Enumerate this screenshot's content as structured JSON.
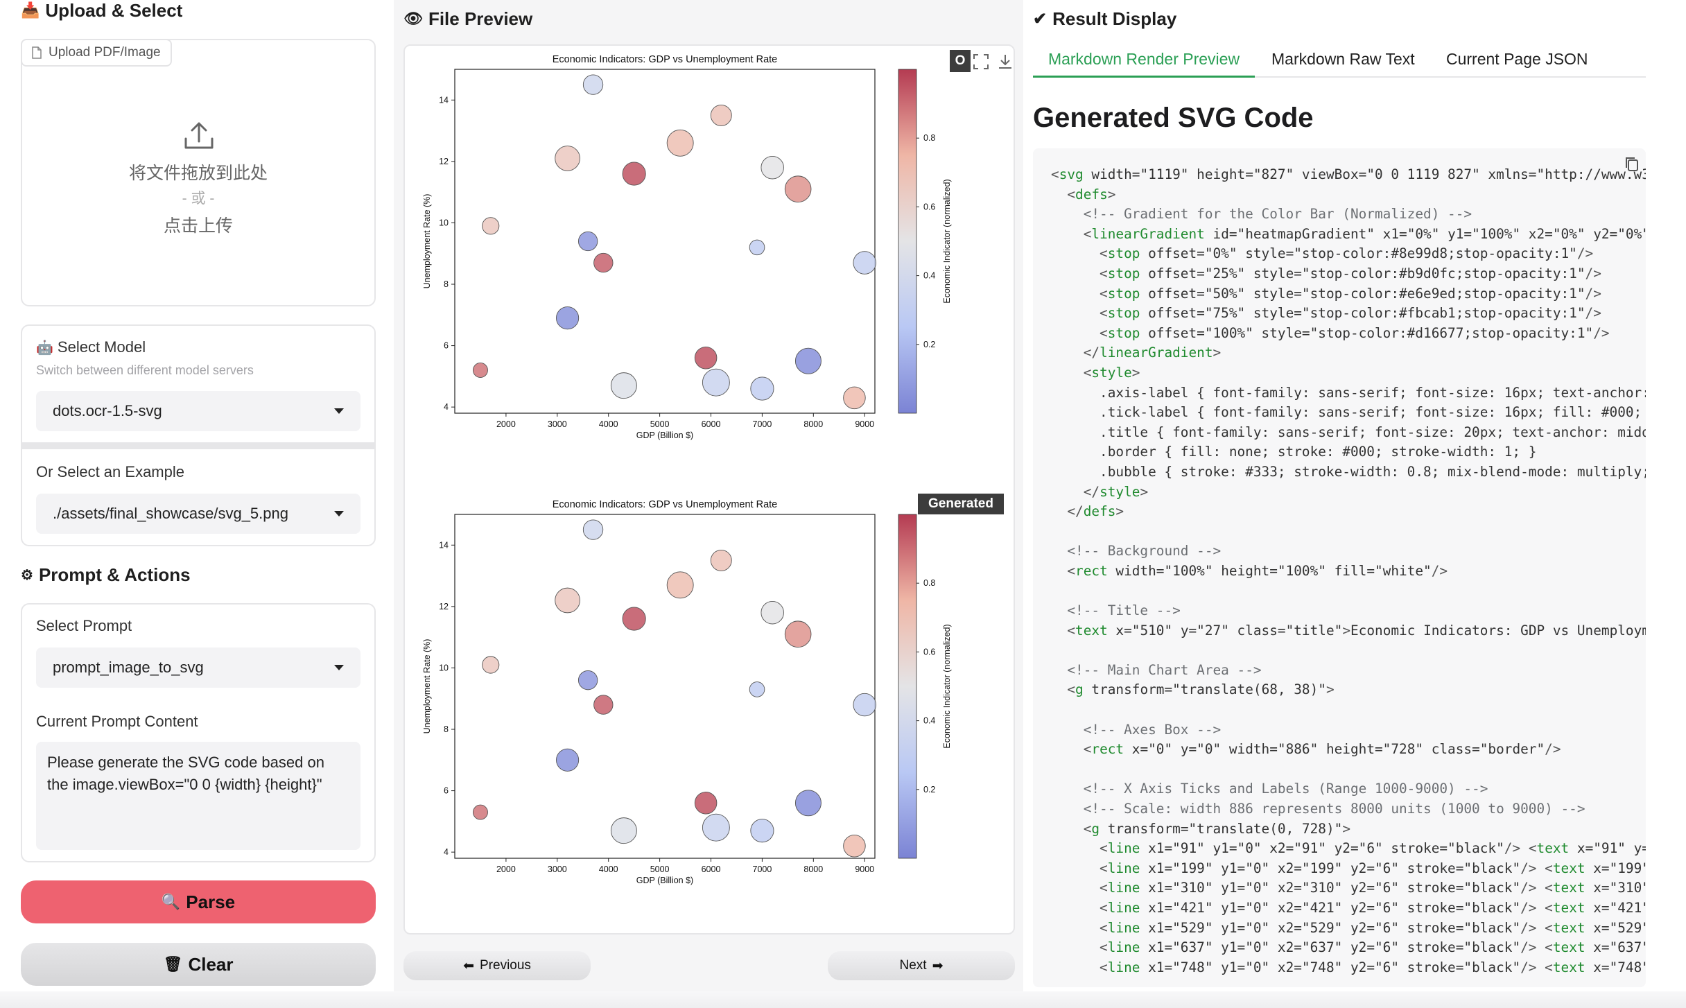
{
  "left": {
    "upload_title": "Upload & Select",
    "upload_tab": "Upload PDF/Image",
    "drop_line1": "将文件拖放到此处",
    "drop_line2": "- 或 -",
    "drop_line3": "点击上传",
    "model_label": "Select Model",
    "model_sub": "Switch between different model servers",
    "model_value": "dots.ocr-1.5-svg",
    "example_label": "Or Select an Example",
    "example_value": "./assets/final_showcase/svg_5.png",
    "prompt_section_title": "Prompt & Actions",
    "prompt_label": "Select Prompt",
    "prompt_value": "prompt_image_to_svg",
    "prompt_content_label": "Current Prompt Content",
    "prompt_content": "Please generate the SVG code based on the image.viewBox=\"0 0 {width} {height}\"",
    "parse_label": "Parse",
    "clear_label": "Clear"
  },
  "middle": {
    "title": "File Preview",
    "original_badge": "O",
    "generated_badge": "Generated",
    "prev_label": "Previous",
    "next_label": "Next"
  },
  "right": {
    "title": "Result Display",
    "tabs": [
      "Markdown Render Preview",
      "Markdown Raw Text",
      "Current Page JSON"
    ],
    "heading": "Generated SVG Code"
  },
  "icons": {
    "upload_section": "inbox-tray-icon",
    "model": "robot-icon",
    "prompt": "gear-icon",
    "parse": "magnifier-icon",
    "clear": "trash-icon",
    "preview": "eye-icon",
    "result": "check-icon",
    "copy": "copy-icon"
  },
  "colors": {
    "accent_green": "#2b9f55",
    "parse_red": "#ee6270",
    "cmap_low": "#8e99d8",
    "cmap_mid": "#e6e9ed",
    "cmap_high": "#d16677"
  },
  "chart_data": [
    {
      "type": "scatter",
      "panel": "original",
      "title": "Economic Indicators: GDP vs Unemployment Rate",
      "xlabel": "GDP (Billion $)",
      "ylabel": "Unemployment Rate (%)",
      "colorbar_label": "Economic Indicator (normalized)",
      "xlim": [
        1000,
        9200
      ],
      "ylim": [
        3.8,
        15
      ],
      "xticks": [
        2000,
        3000,
        4000,
        5000,
        6000,
        7000,
        8000,
        9000
      ],
      "yticks": [
        4,
        6,
        8,
        10,
        12,
        14
      ],
      "cticks": [
        0.2,
        0.4,
        0.6,
        0.8
      ],
      "clim": [
        0,
        1
      ],
      "points": [
        {
          "x": 3700,
          "y": 14.5,
          "size": 0.45,
          "c": 0.38
        },
        {
          "x": 6200,
          "y": 13.5,
          "size": 0.5,
          "c": 0.68
        },
        {
          "x": 3200,
          "y": 12.1,
          "size": 0.68,
          "c": 0.65
        },
        {
          "x": 5400,
          "y": 12.6,
          "size": 0.75,
          "c": 0.7
        },
        {
          "x": 4500,
          "y": 11.6,
          "size": 0.6,
          "c": 0.95
        },
        {
          "x": 7200,
          "y": 11.8,
          "size": 0.58,
          "c": 0.5
        },
        {
          "x": 7700,
          "y": 11.1,
          "size": 0.74,
          "c": 0.82
        },
        {
          "x": 1700,
          "y": 9.9,
          "size": 0.32,
          "c": 0.65
        },
        {
          "x": 3600,
          "y": 9.4,
          "size": 0.42,
          "c": 0.08
        },
        {
          "x": 6900,
          "y": 9.2,
          "size": 0.24,
          "c": 0.3
        },
        {
          "x": 9000,
          "y": 8.7,
          "size": 0.58,
          "c": 0.32
        },
        {
          "x": 3900,
          "y": 8.7,
          "size": 0.42,
          "c": 0.92
        },
        {
          "x": 3200,
          "y": 6.9,
          "size": 0.57,
          "c": 0.06
        },
        {
          "x": 5900,
          "y": 5.6,
          "size": 0.55,
          "c": 0.95
        },
        {
          "x": 7900,
          "y": 5.5,
          "size": 0.72,
          "c": 0.05
        },
        {
          "x": 1500,
          "y": 5.2,
          "size": 0.22,
          "c": 0.88
        },
        {
          "x": 4300,
          "y": 4.7,
          "size": 0.72,
          "c": 0.46
        },
        {
          "x": 6100,
          "y": 4.8,
          "size": 0.78,
          "c": 0.35
        },
        {
          "x": 7000,
          "y": 4.6,
          "size": 0.6,
          "c": 0.3
        },
        {
          "x": 8800,
          "y": 4.3,
          "size": 0.55,
          "c": 0.72
        }
      ]
    },
    {
      "type": "scatter",
      "panel": "generated",
      "title": "Economic Indicators: GDP vs Unemployment Rate",
      "xlabel": "GDP (Billion $)",
      "ylabel": "Unemployment Rate (%)",
      "colorbar_label": "Economic Indicator (normalized)",
      "xlim": [
        1000,
        9200
      ],
      "ylim": [
        3.8,
        15
      ],
      "xticks": [
        2000,
        3000,
        4000,
        5000,
        6000,
        7000,
        8000,
        9000
      ],
      "yticks": [
        4,
        6,
        8,
        10,
        12,
        14
      ],
      "cticks": [
        0.2,
        0.4,
        0.6,
        0.8
      ],
      "clim": [
        0,
        1
      ],
      "points": [
        {
          "x": 3700,
          "y": 14.5,
          "size": 0.45,
          "c": 0.38
        },
        {
          "x": 6200,
          "y": 13.5,
          "size": 0.5,
          "c": 0.68
        },
        {
          "x": 3200,
          "y": 12.2,
          "size": 0.68,
          "c": 0.65
        },
        {
          "x": 5400,
          "y": 12.7,
          "size": 0.75,
          "c": 0.7
        },
        {
          "x": 4500,
          "y": 11.6,
          "size": 0.6,
          "c": 0.95
        },
        {
          "x": 7200,
          "y": 11.8,
          "size": 0.58,
          "c": 0.5
        },
        {
          "x": 7700,
          "y": 11.1,
          "size": 0.74,
          "c": 0.82
        },
        {
          "x": 1700,
          "y": 10.1,
          "size": 0.32,
          "c": 0.65
        },
        {
          "x": 3600,
          "y": 9.6,
          "size": 0.42,
          "c": 0.08
        },
        {
          "x": 6900,
          "y": 9.3,
          "size": 0.24,
          "c": 0.3
        },
        {
          "x": 9000,
          "y": 8.8,
          "size": 0.58,
          "c": 0.32
        },
        {
          "x": 3900,
          "y": 8.8,
          "size": 0.42,
          "c": 0.92
        },
        {
          "x": 3200,
          "y": 7.0,
          "size": 0.57,
          "c": 0.06
        },
        {
          "x": 5900,
          "y": 5.6,
          "size": 0.55,
          "c": 0.95
        },
        {
          "x": 7900,
          "y": 5.6,
          "size": 0.72,
          "c": 0.05
        },
        {
          "x": 1500,
          "y": 5.3,
          "size": 0.22,
          "c": 0.88
        },
        {
          "x": 4300,
          "y": 4.7,
          "size": 0.72,
          "c": 0.46
        },
        {
          "x": 6100,
          "y": 4.8,
          "size": 0.78,
          "c": 0.35
        },
        {
          "x": 7000,
          "y": 4.7,
          "size": 0.6,
          "c": 0.3
        },
        {
          "x": 8800,
          "y": 4.2,
          "size": 0.55,
          "c": 0.72
        }
      ]
    }
  ],
  "code_lines": [
    "<svg width=\"1119\" height=\"827\" viewBox=\"0 0 1119 827\" xmlns=\"http://www.w3.",
    "  <defs>",
    "    <!-- Gradient for the Color Bar (Normalized) -->",
    "    <linearGradient id=\"heatmapGradient\" x1=\"0%\" y1=\"100%\" x2=\"0%\" y2=\"0%\">",
    "      <stop offset=\"0%\" style=\"stop-color:#8e99d8;stop-opacity:1\"/>",
    "      <stop offset=\"25%\" style=\"stop-color:#b9d0fc;stop-opacity:1\"/>",
    "      <stop offset=\"50%\" style=\"stop-color:#e6e9ed;stop-opacity:1\"/>",
    "      <stop offset=\"75%\" style=\"stop-color:#fbcab1;stop-opacity:1\"/>",
    "      <stop offset=\"100%\" style=\"stop-color:#d16677;stop-opacity:1\"/>",
    "    </linearGradient>",
    "    <style>",
    "      .axis-label { font-family: sans-serif; font-size: 16px; text-anchor:",
    "      .tick-label { font-family: sans-serif; font-size: 16px; fill: #000; t",
    "      .title { font-family: sans-serif; font-size: 20px; text-anchor: middl",
    "      .border { fill: none; stroke: #000; stroke-width: 1; }",
    "      .bubble { stroke: #333; stroke-width: 0.8; mix-blend-mode: multiply;",
    "    </style>",
    "  </defs>",
    "",
    "  <!-- Background -->",
    "  <rect width=\"100%\" height=\"100%\" fill=\"white\"/>",
    "",
    "  <!-- Title -->",
    "  <text x=\"510\" y=\"27\" class=\"title\">Economic Indicators: GDP vs Unemployme",
    "",
    "  <!-- Main Chart Area -->",
    "  <g transform=\"translate(68, 38)\">",
    "",
    "    <!-- Axes Box -->",
    "    <rect x=\"0\" y=\"0\" width=\"886\" height=\"728\" class=\"border\"/>",
    "",
    "    <!-- X Axis Ticks and Labels (Range 1000-9000) -->",
    "    <!-- Scale: width 886 represents 8000 units (1000 to 9000) -->",
    "    <g transform=\"translate(0, 728)\">",
    "      <line x1=\"91\" y1=\"0\" x2=\"91\" y2=\"6\" stroke=\"black\"/> <text x=\"91\" y=\"",
    "      <line x1=\"199\" y1=\"0\" x2=\"199\" y2=\"6\" stroke=\"black\"/> <text x=\"199\"",
    "      <line x1=\"310\" y1=\"0\" x2=\"310\" y2=\"6\" stroke=\"black\"/> <text x=\"310\"",
    "      <line x1=\"421\" y1=\"0\" x2=\"421\" y2=\"6\" stroke=\"black\"/> <text x=\"421\"",
    "      <line x1=\"529\" y1=\"0\" x2=\"529\" y2=\"6\" stroke=\"black\"/> <text x=\"529\"",
    "      <line x1=\"637\" y1=\"0\" x2=\"637\" y2=\"6\" stroke=\"black\"/> <text x=\"637\"",
    "      <line x1=\"748\" y1=\"0\" x2=\"748\" y2=\"6\" stroke=\"black\"/> <text x=\"748\""
  ]
}
